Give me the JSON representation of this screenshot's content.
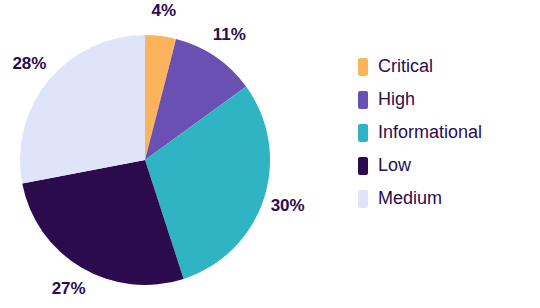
{
  "chart_data": {
    "type": "pie",
    "categories": [
      "Critical",
      "High",
      "Informational",
      "Low",
      "Medium"
    ],
    "values": [
      4,
      11,
      30,
      27,
      28
    ],
    "value_labels": [
      "4%",
      "11%",
      "30%",
      "27%",
      "28%"
    ],
    "colors": [
      "#fbb45c",
      "#6b50b3",
      "#2fb4c4",
      "#2b0b4d",
      "#e0e4fa"
    ],
    "legend": "right",
    "data_labels": true
  }
}
